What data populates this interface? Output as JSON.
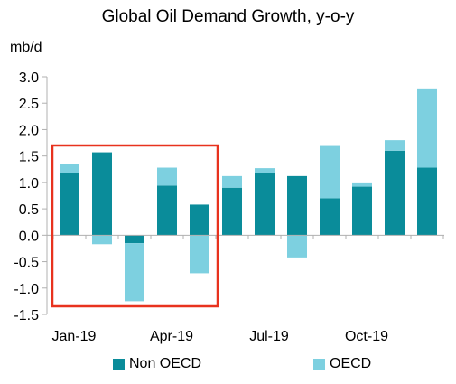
{
  "title": "Global Oil Demand Growth, y-o-y",
  "unit_label": "mb/d",
  "colors": {
    "non_oecd": "#0a8c9a",
    "oecd": "#7dd0e0",
    "highlight_box": "#e8321e",
    "axis": "#b0b0b0"
  },
  "legend": {
    "non_oecd": "Non OECD",
    "oecd": "OECD"
  },
  "chart_data": {
    "type": "bar",
    "stacked": true,
    "title": "Global Oil Demand Growth, y-o-y",
    "ylabel": "mb/d",
    "ylim": [
      -1.5,
      3.0
    ],
    "yticks": [
      "3.0",
      "2.5",
      "2.0",
      "1.5",
      "1.0",
      "0.5",
      "0.0",
      "-0.5",
      "-1.0",
      "-1.5"
    ],
    "ytick_values": [
      3.0,
      2.5,
      2.0,
      1.5,
      1.0,
      0.5,
      0.0,
      -0.5,
      -1.0,
      -1.5
    ],
    "categories": [
      "Jan-19",
      "Feb-19",
      "Mar-19",
      "Apr-19",
      "May-19",
      "Jun-19",
      "Jul-19",
      "Aug-19",
      "Sep-19",
      "Oct-19",
      "Nov-19",
      "Dec-19"
    ],
    "xtick_labels": [
      "Jan-19",
      "",
      "",
      "Apr-19",
      "",
      "",
      "Jul-19",
      "",
      "",
      "Oct-19",
      "",
      ""
    ],
    "series": [
      {
        "name": "Non OECD",
        "values": [
          1.17,
          1.57,
          -0.15,
          0.94,
          0.58,
          0.9,
          1.18,
          1.12,
          0.7,
          0.92,
          1.6,
          1.28
        ]
      },
      {
        "name": "OECD",
        "values": [
          0.18,
          -0.17,
          -1.1,
          0.34,
          -0.72,
          0.22,
          0.09,
          -0.42,
          0.99,
          0.08,
          0.2,
          1.5
        ]
      }
    ],
    "highlight": {
      "from_category": "Jan-19",
      "to_category": "May-19"
    },
    "legend_position": "bottom",
    "grid": false
  }
}
